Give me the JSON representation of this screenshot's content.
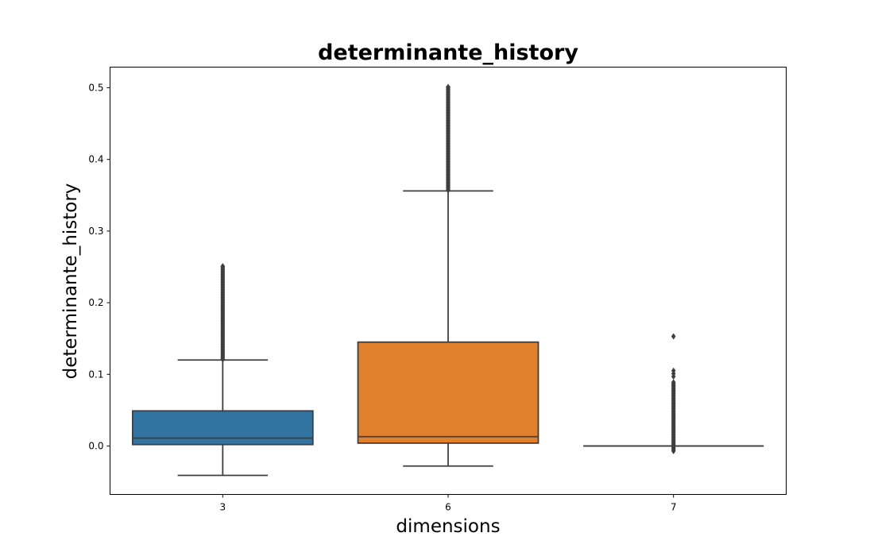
{
  "chart_data": {
    "type": "boxplot",
    "title": "determinante_history",
    "xlabel": "dimensions",
    "ylabel": "determinante_history",
    "categories": [
      "3",
      "6",
      "7"
    ],
    "ylim": [
      -0.068,
      0.528
    ],
    "yticks": [
      "0.0",
      "0.1",
      "0.2",
      "0.3",
      "0.4",
      "0.5"
    ],
    "grid": false,
    "legend": "none",
    "series": [
      {
        "category": "3",
        "color": "#3274a1",
        "whisker_low": -0.041,
        "q1": 0.002,
        "median": 0.011,
        "q3": 0.049,
        "whisker_high": 0.12,
        "outliers_range": [
          0.121,
          0.251
        ],
        "outlier_max": 0.251
      },
      {
        "category": "6",
        "color": "#e1812c",
        "whisker_low": -0.028,
        "q1": 0.004,
        "median": 0.013,
        "q3": 0.145,
        "whisker_high": 0.356,
        "outliers_range": [
          0.357,
          0.501
        ],
        "outlier_max": 0.501
      },
      {
        "category": "7",
        "color": "#3a923a",
        "whisker_low": 0.0,
        "q1": 0.0,
        "median": 0.0,
        "q3": 0.0,
        "whisker_high": 0.0,
        "outliers_range": [
          -0.007,
          0.09
        ],
        "outlier_extra": [
          0.097,
          0.101,
          0.105
        ],
        "outlier_max": 0.153
      }
    ]
  }
}
